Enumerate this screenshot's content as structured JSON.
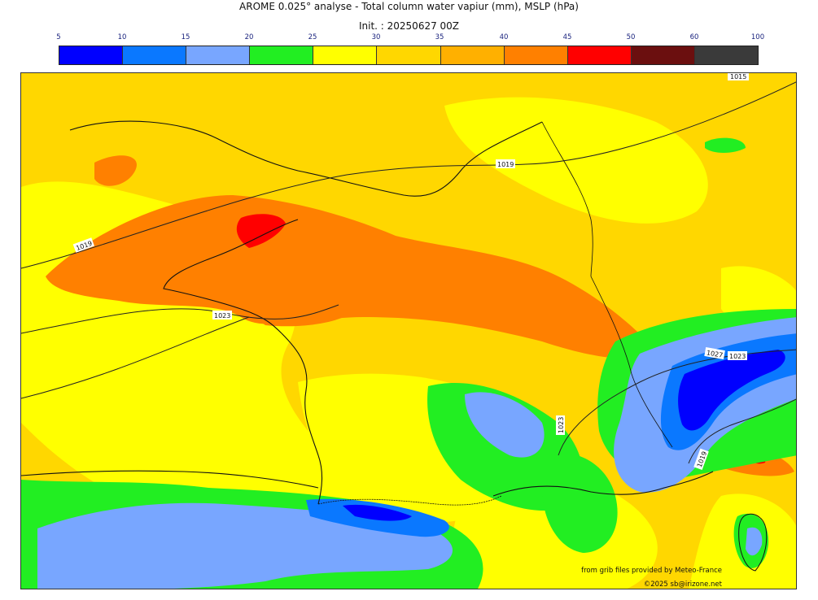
{
  "header": {
    "title": "AROME 0.025° analyse - Total column water vapiur (mm), MSLP (hPa)",
    "init": "Init. : 20250627 00Z"
  },
  "colorbar": {
    "ticks": [
      "5",
      "10",
      "15",
      "20",
      "25",
      "30",
      "35",
      "40",
      "45",
      "50",
      "60",
      "100"
    ],
    "colors": [
      "#0000ff",
      "#0a78ff",
      "#78a6ff",
      "#22ee22",
      "#ffff00",
      "#ffd700",
      "#ffb000",
      "#ff8000",
      "#ff0000",
      "#6b0f0f",
      "#3a3a3a"
    ]
  },
  "map": {
    "isobars": [
      {
        "label": "1015"
      },
      {
        "label": "1019"
      },
      {
        "label": "1019"
      },
      {
        "label": "1023"
      },
      {
        "label": "1027"
      },
      {
        "label": "1023"
      },
      {
        "label": "1023"
      },
      {
        "label": "1019"
      }
    ]
  },
  "credits": {
    "source": "from grib files provided by Meteo-France",
    "copyright": "©2025 sb@irizone.net"
  }
}
